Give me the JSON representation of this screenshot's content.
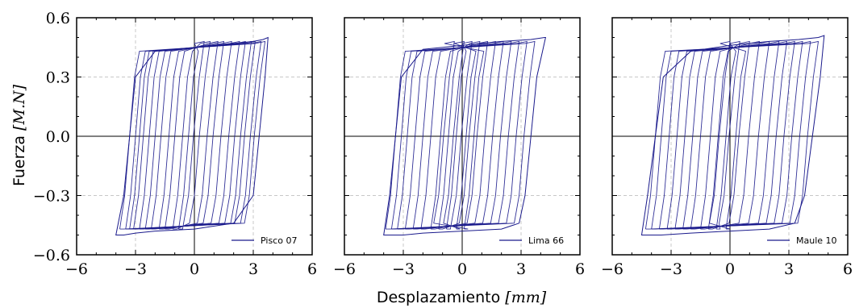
{
  "chart_data": {
    "type": "line",
    "xlabel_text": "Desplazamiento ",
    "xlabel_unit": "mm",
    "ylabel_text": "Fuerza ",
    "ylabel_unit": "M.N",
    "xlim": [
      -6,
      6
    ],
    "ylim": [
      -0.6,
      0.6
    ],
    "xticks": [
      -6,
      -3,
      0,
      3,
      6
    ],
    "xtick_labels": [
      "−6",
      "−3",
      "0",
      "3",
      "6"
    ],
    "yticks": [
      -0.6,
      -0.3,
      0.0,
      0.3,
      0.6
    ],
    "ytick_labels": [
      "−0.6",
      "−0.3",
      "0.0",
      "0.3",
      "0.6"
    ],
    "grid": true,
    "legend_position": "lower-right",
    "line_color": "#1a1a8c",
    "panels": [
      {
        "series_name": "Pisco 07",
        "envelope": {
          "x": [
            -4.0,
            -3.6,
            -3.3,
            -3.0,
            -2.0,
            0.0,
            2.0,
            3.0,
            3.5,
            3.75,
            3.75,
            3.6,
            3.3,
            3.0,
            2.0,
            0.0,
            -2.0,
            -3.0,
            -3.6,
            -4.0
          ],
          "y": [
            -0.5,
            -0.3,
            0.0,
            0.3,
            0.43,
            0.45,
            0.47,
            0.48,
            0.49,
            0.5,
            0.5,
            0.3,
            0.0,
            -0.3,
            -0.44,
            -0.47,
            -0.48,
            -0.49,
            -0.5,
            -0.5
          ]
        },
        "inner_loops": {
          "left_branch_offsets": [
            -3.3,
            -3.0,
            -2.8,
            -2.6,
            -2.3,
            -2.0,
            -1.7,
            -1.3,
            -1.0,
            -0.6,
            -0.3
          ],
          "right_branch_offsets": [
            3.3,
            3.1,
            2.8,
            2.6,
            2.3,
            2.0,
            1.6,
            1.2,
            0.9,
            0.5,
            0.2
          ]
        }
      },
      {
        "series_name": "Lima 66",
        "envelope": {
          "x": [
            -4.0,
            -3.7,
            -3.4,
            -3.1,
            -2.0,
            0.0,
            2.0,
            3.5,
            4.2,
            4.25,
            3.8,
            3.5,
            3.2,
            2.9,
            2.0,
            0.0,
            -2.0,
            -3.0,
            -3.6,
            -4.0
          ],
          "y": [
            -0.5,
            -0.3,
            0.0,
            0.3,
            0.44,
            0.46,
            0.48,
            0.49,
            0.5,
            0.5,
            0.3,
            0.0,
            -0.3,
            -0.44,
            -0.47,
            -0.48,
            -0.49,
            -0.5,
            -0.5,
            -0.5
          ]
        },
        "inner_loops": {
          "left_branch_offsets": [
            -3.4,
            -3.1,
            -2.8,
            -2.4,
            -2.0,
            -1.6,
            -1.1,
            -0.7,
            -0.3,
            0.2,
            0.6,
            1.0
          ],
          "right_branch_offsets": [
            3.4,
            3.0,
            2.6,
            2.2,
            1.8,
            1.4,
            1.0,
            0.6,
            0.2,
            -0.2,
            -0.7
          ]
        }
      },
      {
        "series_name": "Maule 10",
        "envelope": {
          "x": [
            -4.5,
            -4.2,
            -3.8,
            -3.4,
            -2.0,
            0.0,
            2.0,
            3.5,
            4.5,
            4.8,
            4.6,
            4.2,
            3.8,
            3.3,
            2.0,
            0.0,
            -2.0,
            -3.5,
            -4.2,
            -4.5
          ],
          "y": [
            -0.5,
            -0.3,
            0.0,
            0.3,
            0.43,
            0.46,
            0.48,
            0.49,
            0.5,
            0.51,
            0.3,
            0.0,
            -0.3,
            -0.44,
            -0.47,
            -0.48,
            -0.49,
            -0.5,
            -0.5,
            -0.5
          ]
        },
        "inner_loops": {
          "left_branch_offsets": [
            -3.8,
            -3.5,
            -3.1,
            -2.7,
            -2.3,
            -1.9,
            -1.5,
            -1.0,
            -0.6,
            -0.2,
            0.3,
            0.8
          ],
          "right_branch_offsets": [
            4.2,
            3.8,
            3.4,
            3.0,
            2.6,
            2.2,
            1.7,
            1.2,
            0.7,
            0.2,
            -0.3
          ]
        }
      }
    ]
  }
}
